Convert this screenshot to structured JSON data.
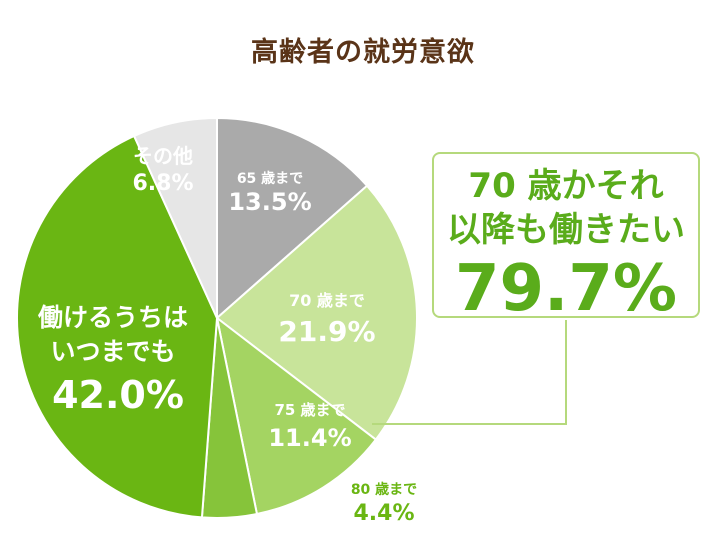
{
  "chart_data": {
    "type": "pie",
    "title": "高齢者の就労意欲",
    "slices": [
      {
        "label": "65 歳まで",
        "value": 13.5,
        "value_text": "13.5%",
        "color": "#aaaaaa"
      },
      {
        "label": "70 歳まで",
        "value": 21.9,
        "value_text": "21.9%",
        "color": "#c8e49a"
      },
      {
        "label": "75 歳まで",
        "value": 11.4,
        "value_text": "11.4%",
        "color": "#a4d462"
      },
      {
        "label": "80 歳まで",
        "value": 4.4,
        "value_text": "4.4%",
        "color": "#86c43a"
      },
      {
        "label": "働けるうちは|いつまでも",
        "value": 42.0,
        "value_text": "42.0%",
        "color": "#6ab613"
      },
      {
        "label": "その他",
        "value": 6.8,
        "value_text": "6.8%",
        "color": "#e6e6e6"
      }
    ],
    "callout": {
      "line1": "70 歳かそれ",
      "line2": "以降も働きたい",
      "value": "79.7%"
    }
  }
}
